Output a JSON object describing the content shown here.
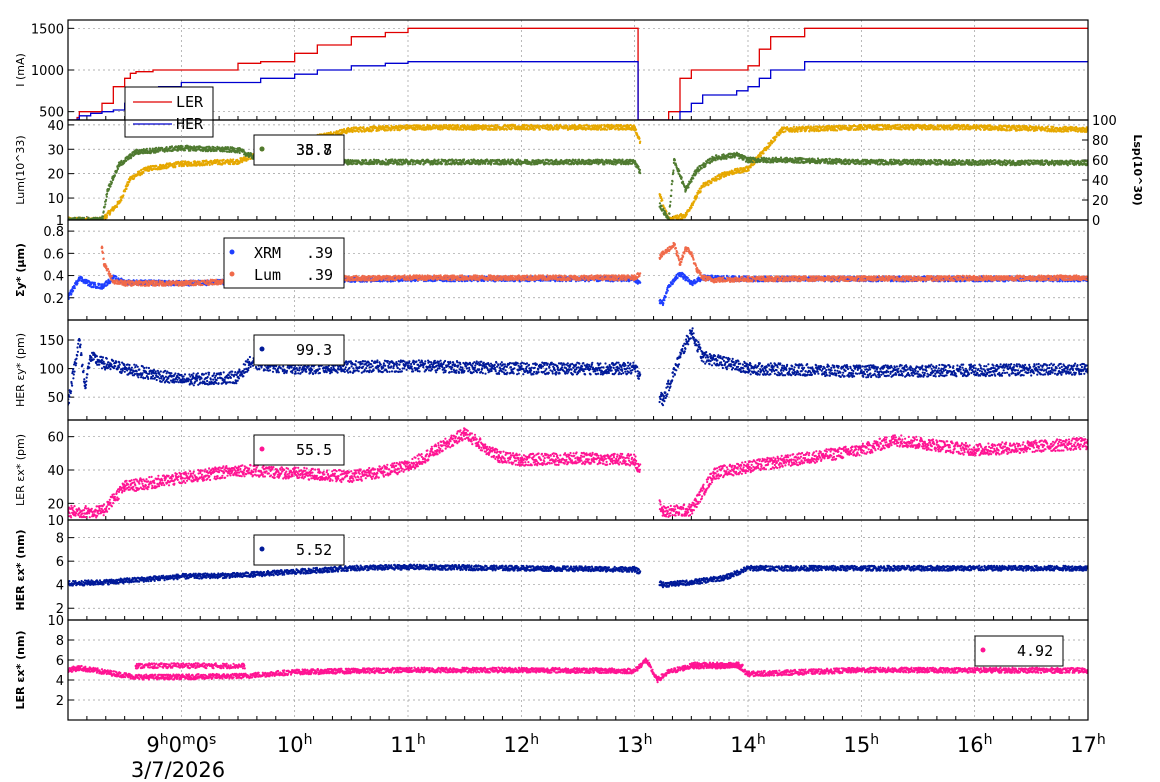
{
  "chart_data": [
    {
      "type": "line",
      "ylabel": "I (mA)",
      "yticks": [
        "500",
        "1000",
        "1500"
      ],
      "ylim": [
        400,
        1600
      ],
      "series": [
        {
          "name": "LER",
          "color": "#e00000",
          "x": [
            8.0,
            8.08,
            8.1,
            8.2,
            8.28,
            8.3,
            8.4,
            8.5,
            8.55,
            8.6,
            8.75,
            8.8,
            9.0,
            9.4,
            9.5,
            9.7,
            10.0,
            10.2,
            10.5,
            10.8,
            11.0,
            13.0,
            13.03,
            13.3,
            13.4,
            13.5,
            13.6,
            13.9,
            14.0,
            14.1,
            14.2,
            14.5,
            15.0,
            17.0
          ],
          "y": [
            400,
            430,
            500,
            500,
            500,
            600,
            800,
            900,
            960,
            980,
            1000,
            1000,
            1000,
            1000,
            1080,
            1100,
            1200,
            1300,
            1400,
            1450,
            1500,
            1500,
            400,
            500,
            900,
            1000,
            1000,
            1000,
            1050,
            1250,
            1400,
            1500,
            1500,
            1500
          ]
        },
        {
          "name": "HER",
          "color": "#0000d0",
          "x": [
            8.0,
            8.08,
            8.1,
            8.2,
            8.3,
            8.4,
            8.5,
            8.6,
            8.8,
            9.0,
            9.5,
            9.7,
            10.0,
            10.2,
            10.5,
            10.8,
            11.0,
            13.0,
            13.03,
            13.3,
            13.4,
            13.5,
            13.6,
            13.9,
            14.0,
            14.1,
            14.2,
            14.5,
            15.0,
            17.0
          ],
          "y": [
            400,
            410,
            450,
            480,
            500,
            520,
            600,
            700,
            800,
            850,
            850,
            900,
            950,
            1000,
            1050,
            1080,
            1100,
            1100,
            400,
            400,
            500,
            600,
            700,
            750,
            800,
            900,
            1000,
            1100,
            1100,
            1100
          ]
        }
      ],
      "legend": {
        "placement": "bottom-left",
        "entries": [
          "LER",
          "HER"
        ]
      }
    },
    {
      "type": "scatter",
      "ylabel": "Lum(10^33)",
      "yticks": [
        "1",
        "10",
        "20",
        "30",
        "40"
      ],
      "ylim": [
        1,
        42
      ],
      "y2label": "Lsp(10^30)",
      "y2ticks": [
        "0",
        "20",
        "40",
        "60",
        "80",
        "100"
      ],
      "y2lim": [
        0,
        100
      ],
      "series": [
        {
          "name": "Lum",
          "color": "#e6a800",
          "x": [
            8.0,
            8.3,
            8.45,
            8.55,
            8.7,
            9.0,
            9.5,
            9.8,
            10.2,
            10.5,
            11.0,
            13.0,
            13.3,
            13.45,
            13.6,
            13.8,
            14.0,
            14.3,
            15.0,
            16.0,
            17.0
          ],
          "y": [
            1,
            1,
            8,
            18,
            22,
            24,
            25,
            30,
            35,
            38,
            39,
            39,
            1,
            3,
            15,
            20,
            22,
            38,
            39,
            39,
            38
          ]
        },
        {
          "name": "Lsp",
          "color": "#4f7a30",
          "x": [
            8.0,
            8.3,
            8.35,
            8.45,
            8.6,
            9.0,
            9.5,
            9.7,
            10.0,
            11.0,
            13.0,
            13.3,
            13.35,
            13.45,
            13.55,
            13.7,
            13.9,
            14.0,
            14.3,
            15.0,
            17.0
          ],
          "y": [
            0,
            0,
            30,
            55,
            68,
            72,
            70,
            60,
            58,
            58,
            58,
            0,
            60,
            30,
            50,
            62,
            65,
            60,
            60,
            58,
            57
          ]
        }
      ],
      "legend": {
        "placement": "top-left",
        "value_labels": [
          "38.8",
          "35.7"
        ]
      }
    },
    {
      "type": "scatter",
      "ylabel": "Σy* (μm)",
      "yticks": [
        "0.2",
        "0.4",
        "0.6",
        "0.8"
      ],
      "ylim": [
        0.0,
        0.9
      ],
      "series": [
        {
          "name": "XRM",
          "color": "#1f3fff",
          "x": [
            8.0,
            8.1,
            8.2,
            8.3,
            8.4,
            8.5,
            9.0,
            10.0,
            11.0,
            13.0,
            13.25,
            13.3,
            13.4,
            13.5,
            13.6,
            14.0,
            17.0
          ],
          "y": [
            0.2,
            0.38,
            0.32,
            0.3,
            0.38,
            0.34,
            0.33,
            0.36,
            0.37,
            0.37,
            0.15,
            0.3,
            0.42,
            0.33,
            0.38,
            0.37,
            0.37
          ]
        },
        {
          "name": "Lum",
          "color": "#f06a4a",
          "x": [
            8.3,
            8.32,
            8.4,
            8.5,
            9.0,
            10.0,
            11.0,
            13.0,
            13.35,
            13.4,
            13.45,
            13.5,
            13.55,
            13.6,
            13.7,
            14.0,
            17.0
          ],
          "y": [
            0.65,
            0.5,
            0.35,
            0.33,
            0.33,
            0.37,
            0.38,
            0.38,
            0.68,
            0.5,
            0.65,
            0.6,
            0.45,
            0.38,
            0.36,
            0.37,
            0.38
          ]
        }
      ],
      "legend": {
        "placement": "top-left",
        "entries": [
          "XRM",
          "Lum"
        ],
        "value_labels": [
          ".39",
          ".39"
        ]
      }
    },
    {
      "type": "scatter",
      "ylabel": "HER εy* (pm)",
      "yticks": [
        "50",
        "100",
        "150"
      ],
      "ylim": [
        10,
        185
      ],
      "series": [
        {
          "name": "HER εy*",
          "color": "#001a99",
          "x": [
            8.0,
            8.1,
            8.15,
            8.2,
            8.3,
            8.5,
            9.0,
            9.5,
            9.6,
            10.0,
            11.0,
            12.0,
            13.0,
            13.25,
            13.4,
            13.5,
            13.6,
            14.0,
            15.0,
            17.0
          ],
          "y": [
            40,
            150,
            70,
            120,
            110,
            100,
            80,
            85,
            110,
            100,
            105,
            100,
            100,
            45,
            120,
            165,
            120,
            100,
            95,
            99
          ]
        }
      ],
      "legend": {
        "placement": "top-left",
        "value_labels": [
          "99.3"
        ]
      }
    },
    {
      "type": "scatter",
      "ylabel": "LER εx* (pm)",
      "yticks": [
        "10",
        "20",
        "40",
        "60"
      ],
      "ylim": [
        10,
        70
      ],
      "series": [
        {
          "name": "LER εx*",
          "color": "#ff1493",
          "x": [
            8.0,
            8.3,
            8.5,
            9.0,
            9.5,
            10.0,
            10.5,
            11.0,
            11.5,
            11.8,
            12.0,
            12.5,
            13.0,
            13.25,
            13.5,
            13.7,
            14.0,
            15.0,
            15.3,
            16.0,
            17.0
          ],
          "y": [
            15,
            15,
            30,
            35,
            40,
            38,
            36,
            42,
            62,
            48,
            46,
            47,
            46,
            15,
            16,
            38,
            42,
            52,
            58,
            52,
            56
          ]
        }
      ],
      "legend": {
        "placement": "top-left",
        "value_labels": [
          "55.5"
        ]
      }
    },
    {
      "type": "scatter",
      "ylabel": "HER εx* (nm)",
      "yticks": [
        "2",
        "4",
        "6",
        "8"
      ],
      "ylim": [
        1,
        9.5
      ],
      "series": [
        {
          "name": "HER εx*",
          "color": "#001a99",
          "x": [
            8.0,
            8.3,
            8.6,
            9.0,
            9.5,
            10.0,
            10.5,
            11.0,
            12.0,
            13.0,
            13.25,
            13.5,
            13.8,
            14.0,
            15.0,
            17.0
          ],
          "y": [
            4.1,
            4.2,
            4.4,
            4.7,
            4.8,
            5.1,
            5.4,
            5.5,
            5.4,
            5.3,
            4.0,
            4.2,
            4.6,
            5.4,
            5.4,
            5.4
          ]
        }
      ],
      "legend": {
        "placement": "top-left",
        "value_labels": [
          "5.52"
        ]
      }
    },
    {
      "type": "scatter",
      "ylabel": "LER εx* (nm)",
      "yticks": [
        "2",
        "4",
        "6",
        "8",
        "10"
      ],
      "ylim": [
        0,
        10
      ],
      "series": [
        {
          "name": "LER εx*",
          "color": "#ff1493",
          "x": [
            8.0,
            8.1,
            8.6,
            9.0,
            9.55,
            10.0,
            11.0,
            12.0,
            13.0,
            13.1,
            13.2,
            13.3,
            13.5,
            13.9,
            14.0,
            15.0,
            17.0
          ],
          "y": [
            5.0,
            5.2,
            4.3,
            4.3,
            4.4,
            4.8,
            5.0,
            5.0,
            4.9,
            6.0,
            4.0,
            4.8,
            5.4,
            5.4,
            4.6,
            5.0,
            4.95
          ]
        },
        {
          "name": "LER εx* upper",
          "color": "#ff1493",
          "x": [
            8.6,
            9.0,
            9.55,
            13.5,
            13.95
          ],
          "y": [
            5.4,
            5.45,
            5.4,
            5.5,
            5.5
          ]
        }
      ],
      "legend": {
        "placement": "top-right",
        "value_labels": [
          "4.92"
        ]
      }
    }
  ],
  "x_axis": {
    "xlim": [
      8.0,
      17.0
    ],
    "ticks": [
      {
        "value": 9.0,
        "label": "9h0m0s"
      },
      {
        "value": 10.0,
        "label": "10h"
      },
      {
        "value": 11.0,
        "label": "11h"
      },
      {
        "value": 12.0,
        "label": "12h"
      },
      {
        "value": 13.0,
        "label": "13h"
      },
      {
        "value": 14.0,
        "label": "14h"
      },
      {
        "value": 15.0,
        "label": "15h"
      },
      {
        "value": 16.0,
        "label": "16h"
      },
      {
        "value": 17.0,
        "label": "17h"
      }
    ],
    "date": "3/7/2026"
  }
}
